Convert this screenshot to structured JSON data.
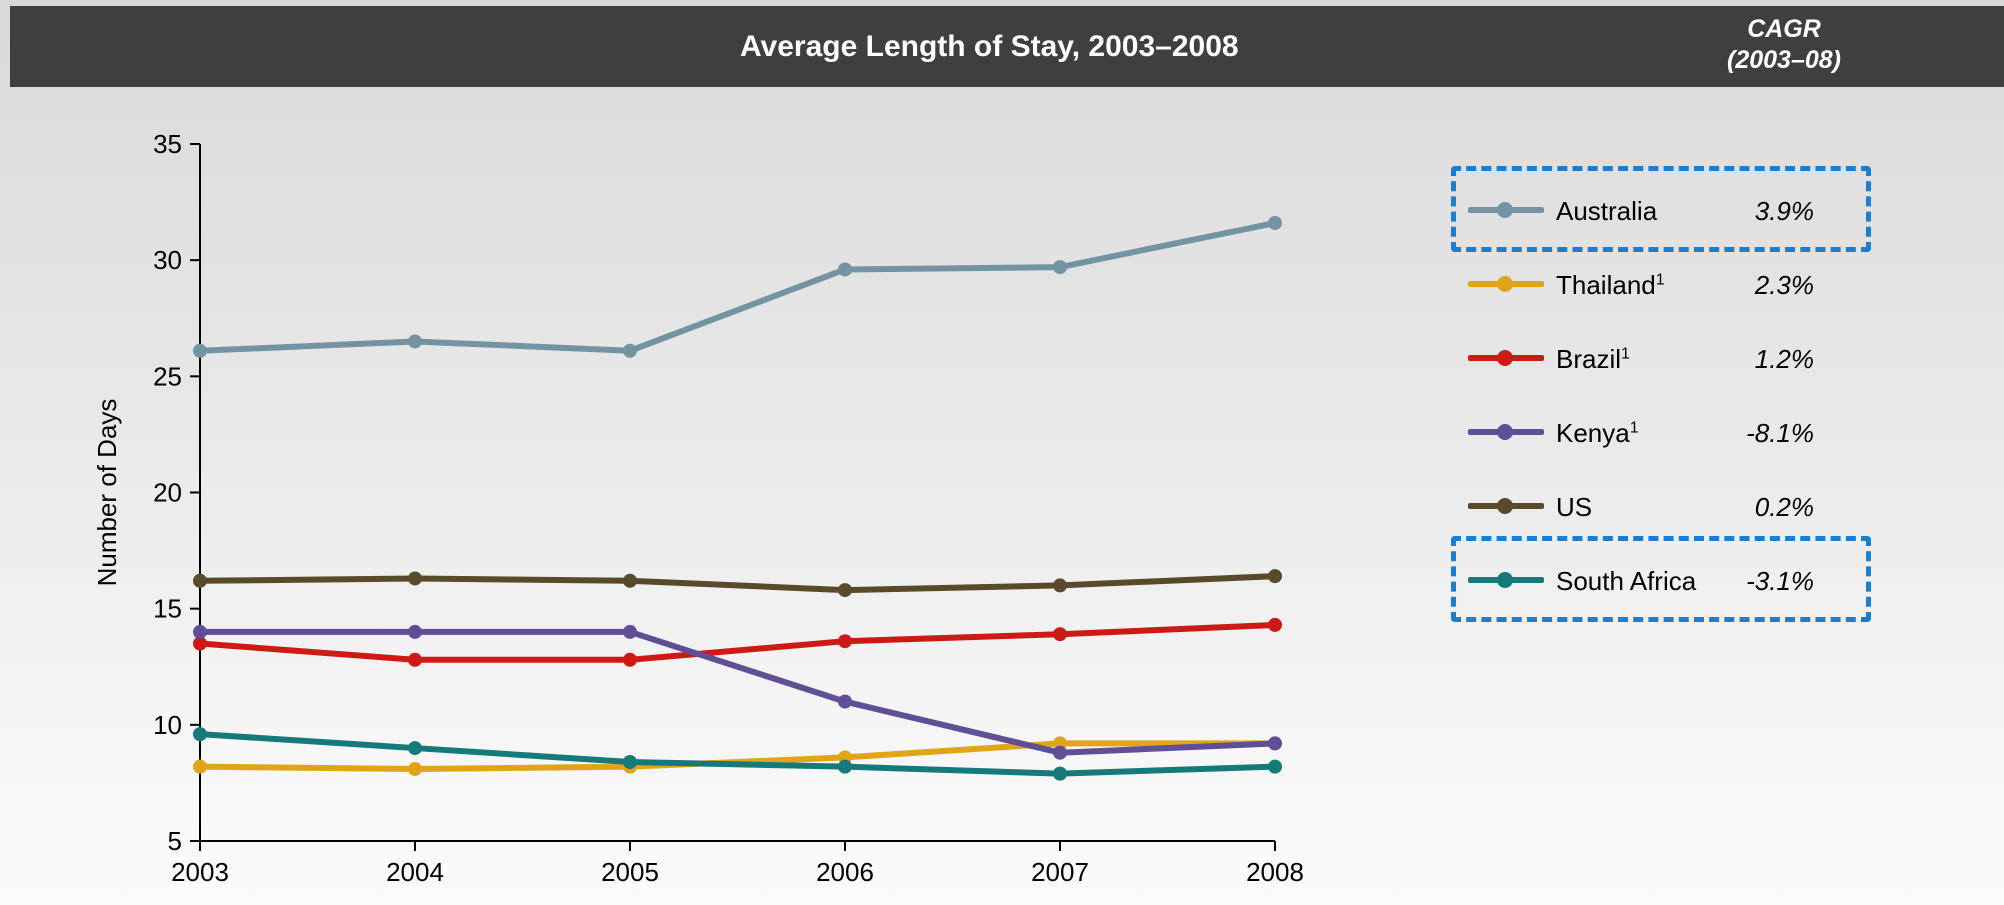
{
  "header": {
    "title": "Average Length of Stay, 2003–2008",
    "cagr_label_line1": "CAGR",
    "cagr_label_line2": "(2003–08)",
    "background": "#3f3f3f"
  },
  "chart_data": {
    "type": "line",
    "title": "Average Length of Stay, 2003–2008",
    "xlabel": "",
    "ylabel": "Number of Days",
    "x": [
      "2003",
      "2004",
      "2005",
      "2006",
      "2007",
      "2008"
    ],
    "ylim": [
      5,
      35
    ],
    "yticks": [
      5,
      10,
      15,
      20,
      25,
      30,
      35
    ],
    "grid": false,
    "legend_placement": "right",
    "series": [
      {
        "name": "Australia",
        "label": "Australia",
        "footnote": "",
        "cagr": "3.9%",
        "color": "#7494a2",
        "values": [
          26.1,
          26.5,
          26.1,
          29.6,
          29.7,
          31.6
        ],
        "highlighted": true
      },
      {
        "name": "Thailand",
        "label": "Thailand",
        "footnote": "1",
        "cagr": "2.3%",
        "color": "#e0a418",
        "values": [
          8.2,
          8.1,
          8.2,
          8.6,
          9.2,
          9.2
        ],
        "highlighted": false
      },
      {
        "name": "Brazil",
        "label": "Brazil",
        "footnote": "1",
        "cagr": "1.2%",
        "color": "#cc1a14",
        "values": [
          13.5,
          12.8,
          12.8,
          13.6,
          13.9,
          14.3
        ],
        "highlighted": false
      },
      {
        "name": "Kenya",
        "label": "Kenya",
        "footnote": "1",
        "cagr": "-8.1%",
        "color": "#5f4f96",
        "values": [
          14.0,
          14.0,
          14.0,
          11.0,
          8.8,
          9.2
        ],
        "highlighted": false
      },
      {
        "name": "US",
        "label": "US",
        "footnote": "",
        "cagr": "0.2%",
        "color": "#5a4a2c",
        "values": [
          16.2,
          16.3,
          16.2,
          15.8,
          16.0,
          16.4
        ],
        "highlighted": false
      },
      {
        "name": "South Africa",
        "label": "South Africa",
        "footnote": "",
        "cagr": "-3.1%",
        "color": "#167a7a",
        "values": [
          9.6,
          9.0,
          8.4,
          8.2,
          7.9,
          8.2
        ],
        "highlighted": true
      }
    ]
  },
  "colors": {
    "highlight_box": "#1a7fd0"
  }
}
